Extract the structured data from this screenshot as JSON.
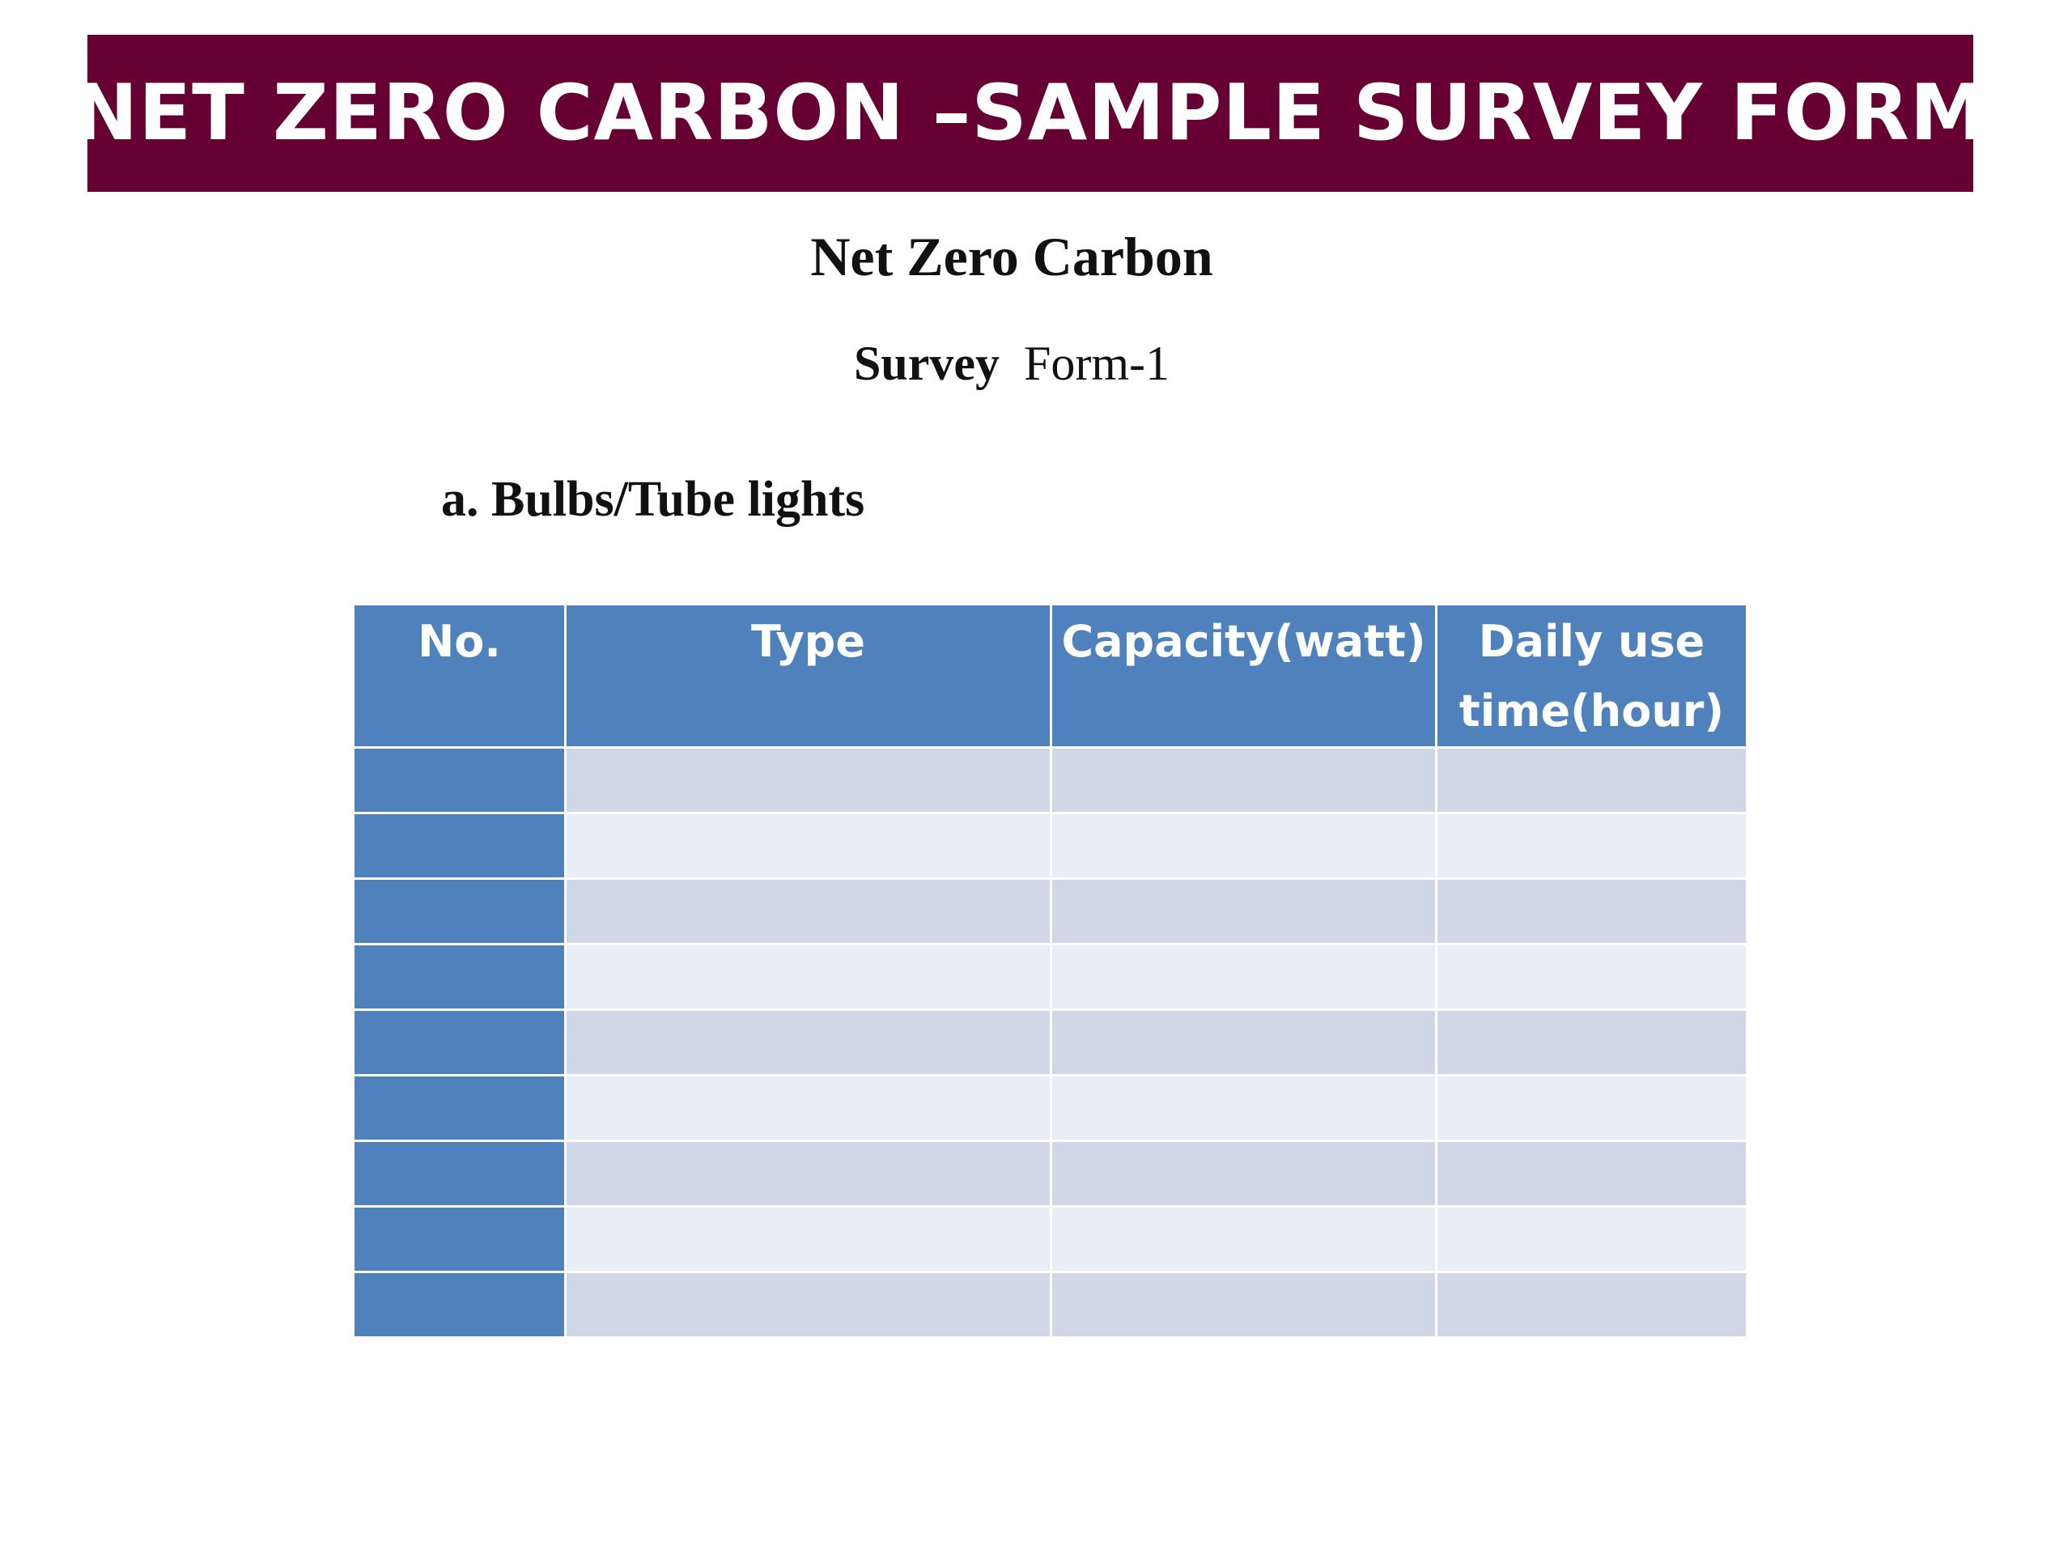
{
  "banner": {
    "title": "NET ZERO CARBON –SAMPLE SURVEY FORM"
  },
  "subtitle": "Net Zero Carbon",
  "form_line": {
    "bold_part": "Survey",
    "rest": "  Form-1"
  },
  "section_heading": "a. Bulbs/Tube lights",
  "table": {
    "headers": [
      "No.",
      "Type",
      "Capacity(watt)",
      "Daily use time(hour)"
    ],
    "rows": [
      [
        "",
        "",
        "",
        ""
      ],
      [
        "",
        "",
        "",
        ""
      ],
      [
        "",
        "",
        "",
        ""
      ],
      [
        "",
        "",
        "",
        ""
      ],
      [
        "",
        "",
        "",
        ""
      ],
      [
        "",
        "",
        "",
        ""
      ],
      [
        "",
        "",
        "",
        ""
      ],
      [
        "",
        "",
        "",
        ""
      ],
      [
        "",
        "",
        "",
        ""
      ]
    ]
  },
  "colors": {
    "banner": "#660033",
    "header": "#4f81bd",
    "row_band_dark": "#d0d8e8",
    "row_band_light": "#e9edf4"
  }
}
